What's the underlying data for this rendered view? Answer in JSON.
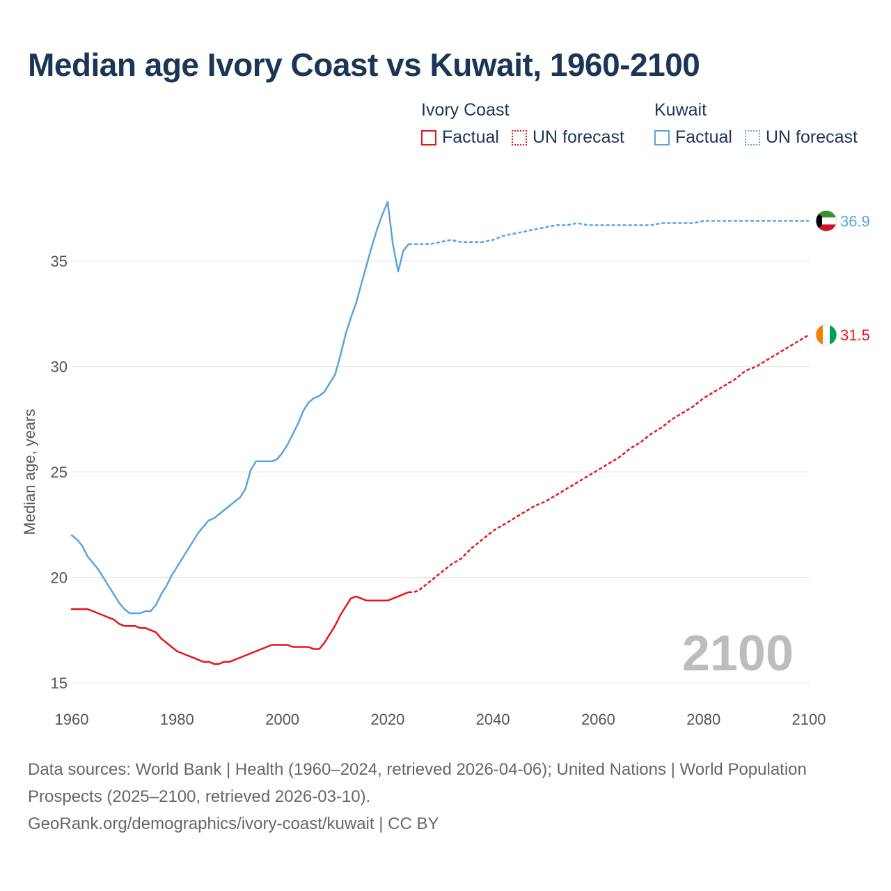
{
  "title": "Median age Ivory Coast vs Kuwait, 1960-2100",
  "legend": {
    "groups": [
      {
        "name": "Ivory Coast",
        "factual": "Factual",
        "forecast": "UN forecast",
        "color": "#e8141c"
      },
      {
        "name": "Kuwait",
        "factual": "Factual",
        "forecast": "UN forecast",
        "color": "#5aa3e0"
      }
    ]
  },
  "footer": {
    "sources": "Data sources: World Bank | Health (1960–2024, retrieved 2026-04-06); United Nations | World Population Prospects (2025–2100, retrieved 2026-03-10).",
    "credit": "GeoRank.org/demographics/ivory-coast/kuwait | CC BY"
  },
  "chart_data": {
    "type": "line",
    "title": "Median age Ivory Coast vs Kuwait, 1960-2100",
    "xlabel": "",
    "ylabel": "Median age, years",
    "xlim": [
      1960,
      2100
    ],
    "ylim": [
      15,
      38
    ],
    "xticks": [
      1960,
      1980,
      2000,
      2020,
      2040,
      2060,
      2080,
      2100
    ],
    "yticks": [
      15,
      20,
      25,
      30,
      35
    ],
    "current_year_label": "2100",
    "series": [
      {
        "name": "Ivory Coast",
        "color": "#e8141c",
        "end_label": "31.5",
        "factual": [
          [
            1960,
            18.5
          ],
          [
            1961,
            18.5
          ],
          [
            1962,
            18.5
          ],
          [
            1963,
            18.5
          ],
          [
            1964,
            18.4
          ],
          [
            1965,
            18.3
          ],
          [
            1966,
            18.2
          ],
          [
            1967,
            18.1
          ],
          [
            1968,
            18.0
          ],
          [
            1969,
            17.8
          ],
          [
            1970,
            17.7
          ],
          [
            1971,
            17.7
          ],
          [
            1972,
            17.7
          ],
          [
            1973,
            17.6
          ],
          [
            1974,
            17.6
          ],
          [
            1975,
            17.5
          ],
          [
            1976,
            17.4
          ],
          [
            1977,
            17.1
          ],
          [
            1978,
            16.9
          ],
          [
            1979,
            16.7
          ],
          [
            1980,
            16.5
          ],
          [
            1981,
            16.4
          ],
          [
            1982,
            16.3
          ],
          [
            1983,
            16.2
          ],
          [
            1984,
            16.1
          ],
          [
            1985,
            16.0
          ],
          [
            1986,
            16.0
          ],
          [
            1987,
            15.9
          ],
          [
            1988,
            15.9
          ],
          [
            1989,
            16.0
          ],
          [
            1990,
            16.0
          ],
          [
            1991,
            16.1
          ],
          [
            1992,
            16.2
          ],
          [
            1993,
            16.3
          ],
          [
            1994,
            16.4
          ],
          [
            1995,
            16.5
          ],
          [
            1996,
            16.6
          ],
          [
            1997,
            16.7
          ],
          [
            1998,
            16.8
          ],
          [
            1999,
            16.8
          ],
          [
            2000,
            16.8
          ],
          [
            2001,
            16.8
          ],
          [
            2002,
            16.7
          ],
          [
            2003,
            16.7
          ],
          [
            2004,
            16.7
          ],
          [
            2005,
            16.7
          ],
          [
            2006,
            16.6
          ],
          [
            2007,
            16.6
          ],
          [
            2008,
            16.9
          ],
          [
            2009,
            17.3
          ],
          [
            2010,
            17.7
          ],
          [
            2011,
            18.2
          ],
          [
            2012,
            18.6
          ],
          [
            2013,
            19.0
          ],
          [
            2014,
            19.1
          ],
          [
            2015,
            19.0
          ],
          [
            2016,
            18.9
          ],
          [
            2017,
            18.9
          ],
          [
            2018,
            18.9
          ],
          [
            2019,
            18.9
          ],
          [
            2020,
            18.9
          ],
          [
            2021,
            19.0
          ],
          [
            2022,
            19.1
          ],
          [
            2023,
            19.2
          ],
          [
            2024,
            19.3
          ]
        ],
        "forecast": [
          [
            2024,
            19.3
          ],
          [
            2025,
            19.3
          ],
          [
            2026,
            19.4
          ],
          [
            2028,
            19.8
          ],
          [
            2030,
            20.2
          ],
          [
            2032,
            20.6
          ],
          [
            2034,
            20.9
          ],
          [
            2036,
            21.4
          ],
          [
            2038,
            21.8
          ],
          [
            2040,
            22.2
          ],
          [
            2042,
            22.5
          ],
          [
            2044,
            22.8
          ],
          [
            2046,
            23.1
          ],
          [
            2048,
            23.4
          ],
          [
            2050,
            23.6
          ],
          [
            2052,
            23.9
          ],
          [
            2054,
            24.2
          ],
          [
            2056,
            24.5
          ],
          [
            2058,
            24.8
          ],
          [
            2060,
            25.1
          ],
          [
            2062,
            25.4
          ],
          [
            2064,
            25.7
          ],
          [
            2066,
            26.1
          ],
          [
            2068,
            26.4
          ],
          [
            2070,
            26.8
          ],
          [
            2072,
            27.1
          ],
          [
            2074,
            27.5
          ],
          [
            2076,
            27.8
          ],
          [
            2078,
            28.1
          ],
          [
            2080,
            28.5
          ],
          [
            2082,
            28.8
          ],
          [
            2084,
            29.1
          ],
          [
            2086,
            29.4
          ],
          [
            2088,
            29.8
          ],
          [
            2090,
            30.0
          ],
          [
            2092,
            30.3
          ],
          [
            2094,
            30.6
          ],
          [
            2096,
            30.9
          ],
          [
            2098,
            31.2
          ],
          [
            2100,
            31.5
          ]
        ]
      },
      {
        "name": "Kuwait",
        "color": "#5aa3e0",
        "end_label": "36.9",
        "factual": [
          [
            1960,
            22.0
          ],
          [
            1961,
            21.8
          ],
          [
            1962,
            21.5
          ],
          [
            1963,
            21.0
          ],
          [
            1964,
            20.7
          ],
          [
            1965,
            20.4
          ],
          [
            1966,
            20.0
          ],
          [
            1967,
            19.6
          ],
          [
            1968,
            19.2
          ],
          [
            1969,
            18.8
          ],
          [
            1970,
            18.5
          ],
          [
            1971,
            18.3
          ],
          [
            1972,
            18.3
          ],
          [
            1973,
            18.3
          ],
          [
            1974,
            18.4
          ],
          [
            1975,
            18.4
          ],
          [
            1976,
            18.7
          ],
          [
            1977,
            19.2
          ],
          [
            1978,
            19.6
          ],
          [
            1979,
            20.1
          ],
          [
            1980,
            20.5
          ],
          [
            1981,
            20.9
          ],
          [
            1982,
            21.3
          ],
          [
            1983,
            21.7
          ],
          [
            1984,
            22.1
          ],
          [
            1985,
            22.4
          ],
          [
            1986,
            22.7
          ],
          [
            1987,
            22.8
          ],
          [
            1988,
            23.0
          ],
          [
            1989,
            23.2
          ],
          [
            1990,
            23.4
          ],
          [
            1991,
            23.6
          ],
          [
            1992,
            23.8
          ],
          [
            1993,
            24.2
          ],
          [
            1994,
            25.1
          ],
          [
            1995,
            25.5
          ],
          [
            1996,
            25.5
          ],
          [
            1997,
            25.5
          ],
          [
            1998,
            25.5
          ],
          [
            1999,
            25.6
          ],
          [
            2000,
            25.9
          ],
          [
            2001,
            26.3
          ],
          [
            2002,
            26.8
          ],
          [
            2003,
            27.3
          ],
          [
            2004,
            27.9
          ],
          [
            2005,
            28.3
          ],
          [
            2006,
            28.5
          ],
          [
            2007,
            28.6
          ],
          [
            2008,
            28.8
          ],
          [
            2009,
            29.2
          ],
          [
            2010,
            29.6
          ],
          [
            2011,
            30.5
          ],
          [
            2012,
            31.5
          ],
          [
            2013,
            32.3
          ],
          [
            2014,
            33.0
          ],
          [
            2015,
            33.9
          ],
          [
            2016,
            34.8
          ],
          [
            2017,
            35.7
          ],
          [
            2018,
            36.5
          ],
          [
            2019,
            37.2
          ],
          [
            2020,
            37.8
          ],
          [
            2021,
            35.8
          ],
          [
            2022,
            34.5
          ],
          [
            2023,
            35.5
          ],
          [
            2024,
            35.8
          ]
        ],
        "forecast": [
          [
            2024,
            35.8
          ],
          [
            2026,
            35.8
          ],
          [
            2028,
            35.8
          ],
          [
            2030,
            35.9
          ],
          [
            2032,
            36.0
          ],
          [
            2034,
            35.9
          ],
          [
            2036,
            35.9
          ],
          [
            2038,
            35.9
          ],
          [
            2040,
            36.0
          ],
          [
            2042,
            36.2
          ],
          [
            2044,
            36.3
          ],
          [
            2046,
            36.4
          ],
          [
            2048,
            36.5
          ],
          [
            2050,
            36.6
          ],
          [
            2052,
            36.7
          ],
          [
            2054,
            36.7
          ],
          [
            2056,
            36.8
          ],
          [
            2058,
            36.7
          ],
          [
            2060,
            36.7
          ],
          [
            2062,
            36.7
          ],
          [
            2064,
            36.7
          ],
          [
            2066,
            36.7
          ],
          [
            2068,
            36.7
          ],
          [
            2070,
            36.7
          ],
          [
            2072,
            36.8
          ],
          [
            2074,
            36.8
          ],
          [
            2076,
            36.8
          ],
          [
            2078,
            36.8
          ],
          [
            2080,
            36.9
          ],
          [
            2084,
            36.9
          ],
          [
            2088,
            36.9
          ],
          [
            2092,
            36.9
          ],
          [
            2096,
            36.9
          ],
          [
            2100,
            36.9
          ]
        ]
      }
    ]
  }
}
